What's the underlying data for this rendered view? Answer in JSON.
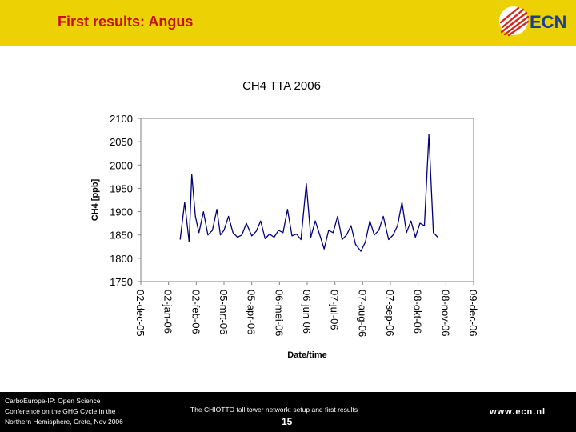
{
  "slide": {
    "title": "First results: Angus",
    "logo_text": "ECN"
  },
  "footer": {
    "left_lines": [
      "CarboEurope-IP: Open Science",
      "Conference on the GHG Cycle in the",
      "Northern Hemisphere, Crete, Nov 2006"
    ],
    "center": "The CHIOTTO tall tower network: setup and first results",
    "page": "15",
    "url": "www.ecn.nl"
  },
  "colors": {
    "header_bg": "#ecd105",
    "title": "#c5121a",
    "series": "#00007f",
    "logo_red": "#d42a1e",
    "logo_blue": "#1d3f8f"
  },
  "chart_data": {
    "type": "line",
    "title": "CH4 TTA 2006",
    "xlabel": "Date/time",
    "ylabel": "CH4 [ppb]",
    "ylim": [
      1750,
      2100
    ],
    "yticks": [
      1750,
      1800,
      1850,
      1900,
      1950,
      2000,
      2050,
      2100
    ],
    "xticks": [
      "02-dec-05",
      "02-jan-06",
      "02-feb-06",
      "05-mrt-06",
      "05-apr-06",
      "06-mei-06",
      "06-jun-06",
      "07-jul-06",
      "07-aug-06",
      "07-sep-06",
      "08-okt-06",
      "08-nov-06",
      "09-dec-06"
    ],
    "xlim": [
      "2005-12-02",
      "2006-12-09"
    ],
    "grid": false,
    "legend": "none",
    "series": [
      {
        "x": [
          "2006-01-15",
          "2006-01-20",
          "2006-01-25",
          "2006-01-28",
          "2006-02-01",
          "2006-02-05",
          "2006-02-10",
          "2006-02-15",
          "2006-02-20",
          "2006-02-25",
          "2006-03-01",
          "2006-03-05",
          "2006-03-10",
          "2006-03-15",
          "2006-03-20",
          "2006-03-25",
          "2006-03-30",
          "2006-04-05",
          "2006-04-10",
          "2006-04-15",
          "2006-04-20",
          "2006-04-25",
          "2006-04-30",
          "2006-05-05",
          "2006-05-10",
          "2006-05-15",
          "2006-05-20",
          "2006-05-25",
          "2006-05-30",
          "2006-06-05",
          "2006-06-10",
          "2006-06-15",
          "2006-06-20",
          "2006-06-25",
          "2006-06-30",
          "2006-07-05",
          "2006-07-10",
          "2006-07-15",
          "2006-07-20",
          "2006-07-25",
          "2006-07-30",
          "2006-08-05",
          "2006-08-10",
          "2006-08-15",
          "2006-08-20",
          "2006-08-25",
          "2006-08-30",
          "2006-09-05",
          "2006-09-10",
          "2006-09-15",
          "2006-09-20",
          "2006-09-25",
          "2006-09-30",
          "2006-10-05",
          "2006-10-10",
          "2006-10-15",
          "2006-10-20",
          "2006-10-25",
          "2006-10-30"
        ],
        "values": [
          1840,
          1920,
          1835,
          1980,
          1890,
          1855,
          1900,
          1850,
          1860,
          1905,
          1850,
          1860,
          1890,
          1855,
          1845,
          1850,
          1875,
          1848,
          1858,
          1880,
          1842,
          1852,
          1845,
          1860,
          1855,
          1905,
          1848,
          1852,
          1840,
          1960,
          1845,
          1880,
          1850,
          1820,
          1860,
          1855,
          1890,
          1840,
          1850,
          1870,
          1830,
          1815,
          1835,
          1880,
          1850,
          1860,
          1890,
          1840,
          1850,
          1870,
          1920,
          1855,
          1880,
          1845,
          1875,
          1870,
          2065,
          1855,
          1845
        ]
      }
    ]
  }
}
